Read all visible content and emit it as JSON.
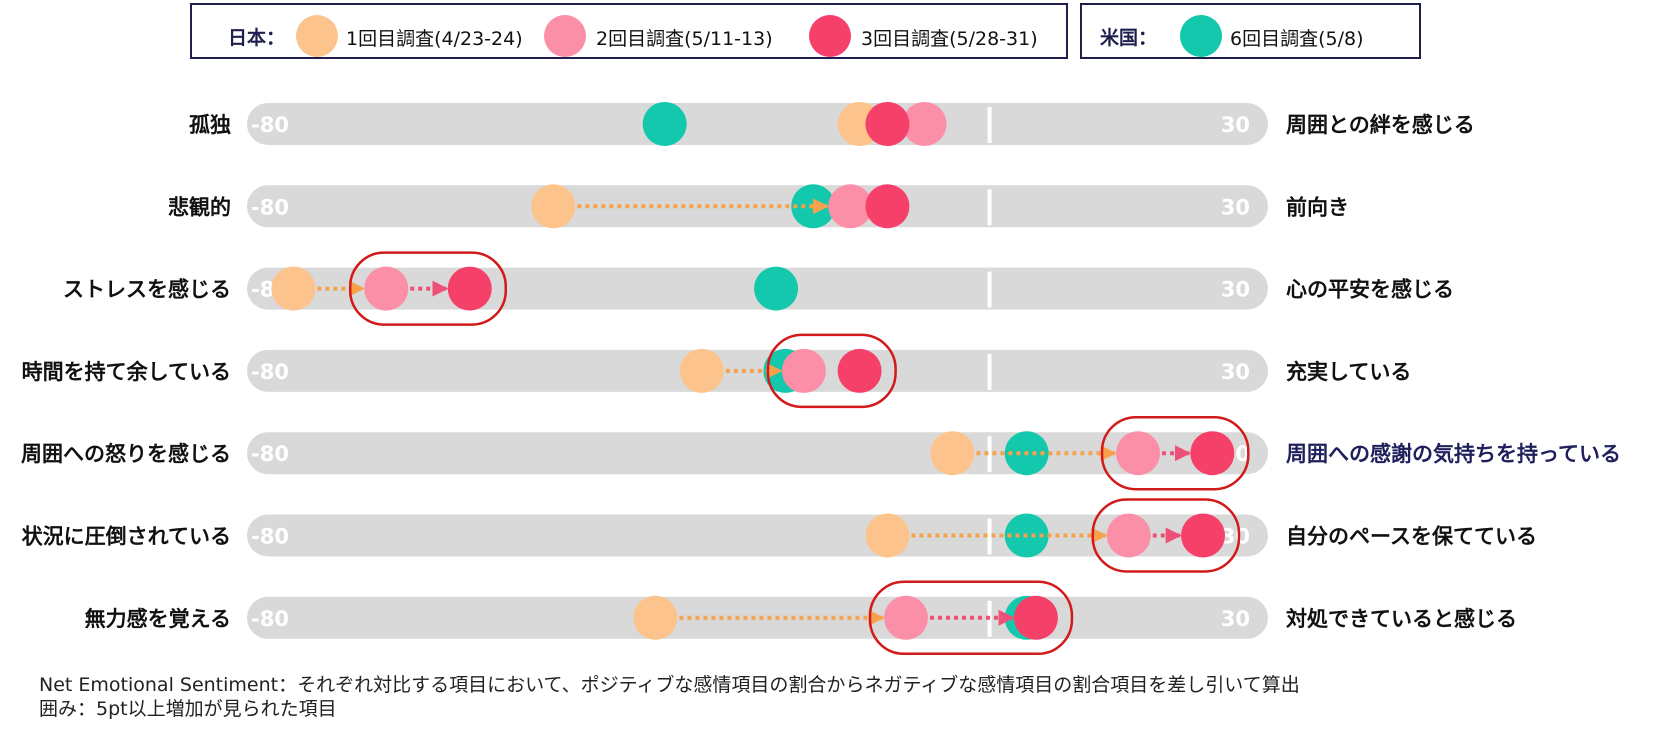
{
  "legend": {
    "japan": {
      "label": "日本：",
      "items": [
        {
          "label": "1回目調査(4/23-24)",
          "color": "#fcc48c"
        },
        {
          "label": "2回目調査(5/11-13)",
          "color": "#fb8fa8"
        },
        {
          "label": "3回目調査(5/28-31)",
          "color": "#f5406a"
        }
      ]
    },
    "us": {
      "label": "米国：",
      "items": [
        {
          "label": "6回目調査(5/8)",
          "color": "#13c8ac"
        }
      ]
    }
  },
  "chart_data": {
    "type": "scatter",
    "xlim": [
      -80,
      30
    ],
    "scale_min_label": "-80",
    "scale_max_label": "30",
    "zero_marker": 0,
    "series": [
      {
        "name": "1回目調査(4/23-24)",
        "color": "#fcc48c"
      },
      {
        "name": "2回目調査(5/11-13)",
        "color": "#fb8fa8"
      },
      {
        "name": "3回目調査(5/28-31)",
        "color": "#f5406a"
      },
      {
        "name": "6回目調査(5/8)",
        "color": "#13c8ac"
      }
    ],
    "rows": [
      {
        "left": "孤独",
        "right": "周囲との絆を感じる",
        "values": [
          -14,
          -7,
          -11,
          -35
        ],
        "arrows": false,
        "circled": false
      },
      {
        "left": "悲観的",
        "right": "前向き",
        "values": [
          -47,
          -15,
          -11,
          -19
        ],
        "arrows": true,
        "circled": false
      },
      {
        "left": "ストレスを感じる",
        "right": "心の平安を感じる",
        "values": [
          -75,
          -65,
          -56,
          -23
        ],
        "arrows": true,
        "circled": true
      },
      {
        "left": "時間を持て余している",
        "right": "充実している",
        "values": [
          -31,
          -20,
          -14,
          -22
        ],
        "arrows": true,
        "circled": true
      },
      {
        "left": "周囲への怒りを感じる",
        "right": "周囲への感謝の気持ちを持っている",
        "values": [
          -4,
          16,
          24,
          4
        ],
        "arrows": true,
        "circled": true,
        "right_highlight": true
      },
      {
        "left": "状況に圧倒されている",
        "right": "自分のペースを保てている",
        "values": [
          -11,
          15,
          23,
          4
        ],
        "arrows": true,
        "circled": true
      },
      {
        "left": "無力感を覚える",
        "right": "対処できていると感じる",
        "values": [
          -36,
          -9,
          5,
          4
        ],
        "arrows": true,
        "circled": true
      }
    ]
  },
  "notes": [
    "Net Emotional Sentiment：それぞれ対比する項目において、ポジティブな感情項目の割合からネガティブな感情項目の割合項目を差し引いて算出",
    "囲み：5pt以上増加が見られた項目"
  ]
}
